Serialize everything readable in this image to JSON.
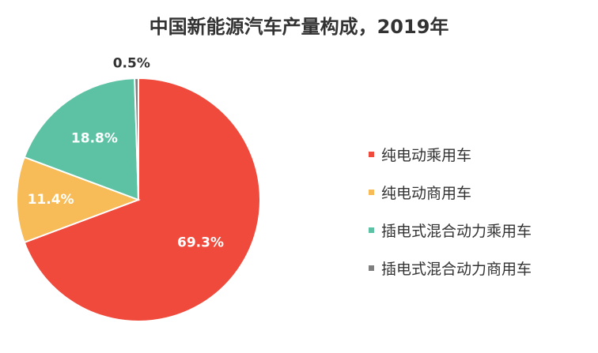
{
  "chart_data": {
    "type": "pie",
    "title": "中国新能源汽车产量构成，2019年",
    "slices": [
      {
        "name": "纯电动乘用车",
        "value": 69.3,
        "label": "69.3%",
        "color": "#f04a3c"
      },
      {
        "name": "纯电动商用车",
        "value": 11.4,
        "label": "11.4%",
        "color": "#f7bb57"
      },
      {
        "name": "插电式混合动力乘用车",
        "value": 18.8,
        "label": "18.8%",
        "color": "#5dc2a3"
      },
      {
        "name": "插电式混合动力商用车",
        "value": 0.5,
        "label": "0.5%",
        "color": "#7f7f7f"
      }
    ],
    "legend_position": "right",
    "start_angle_deg": 0,
    "direction": "clockwise"
  }
}
